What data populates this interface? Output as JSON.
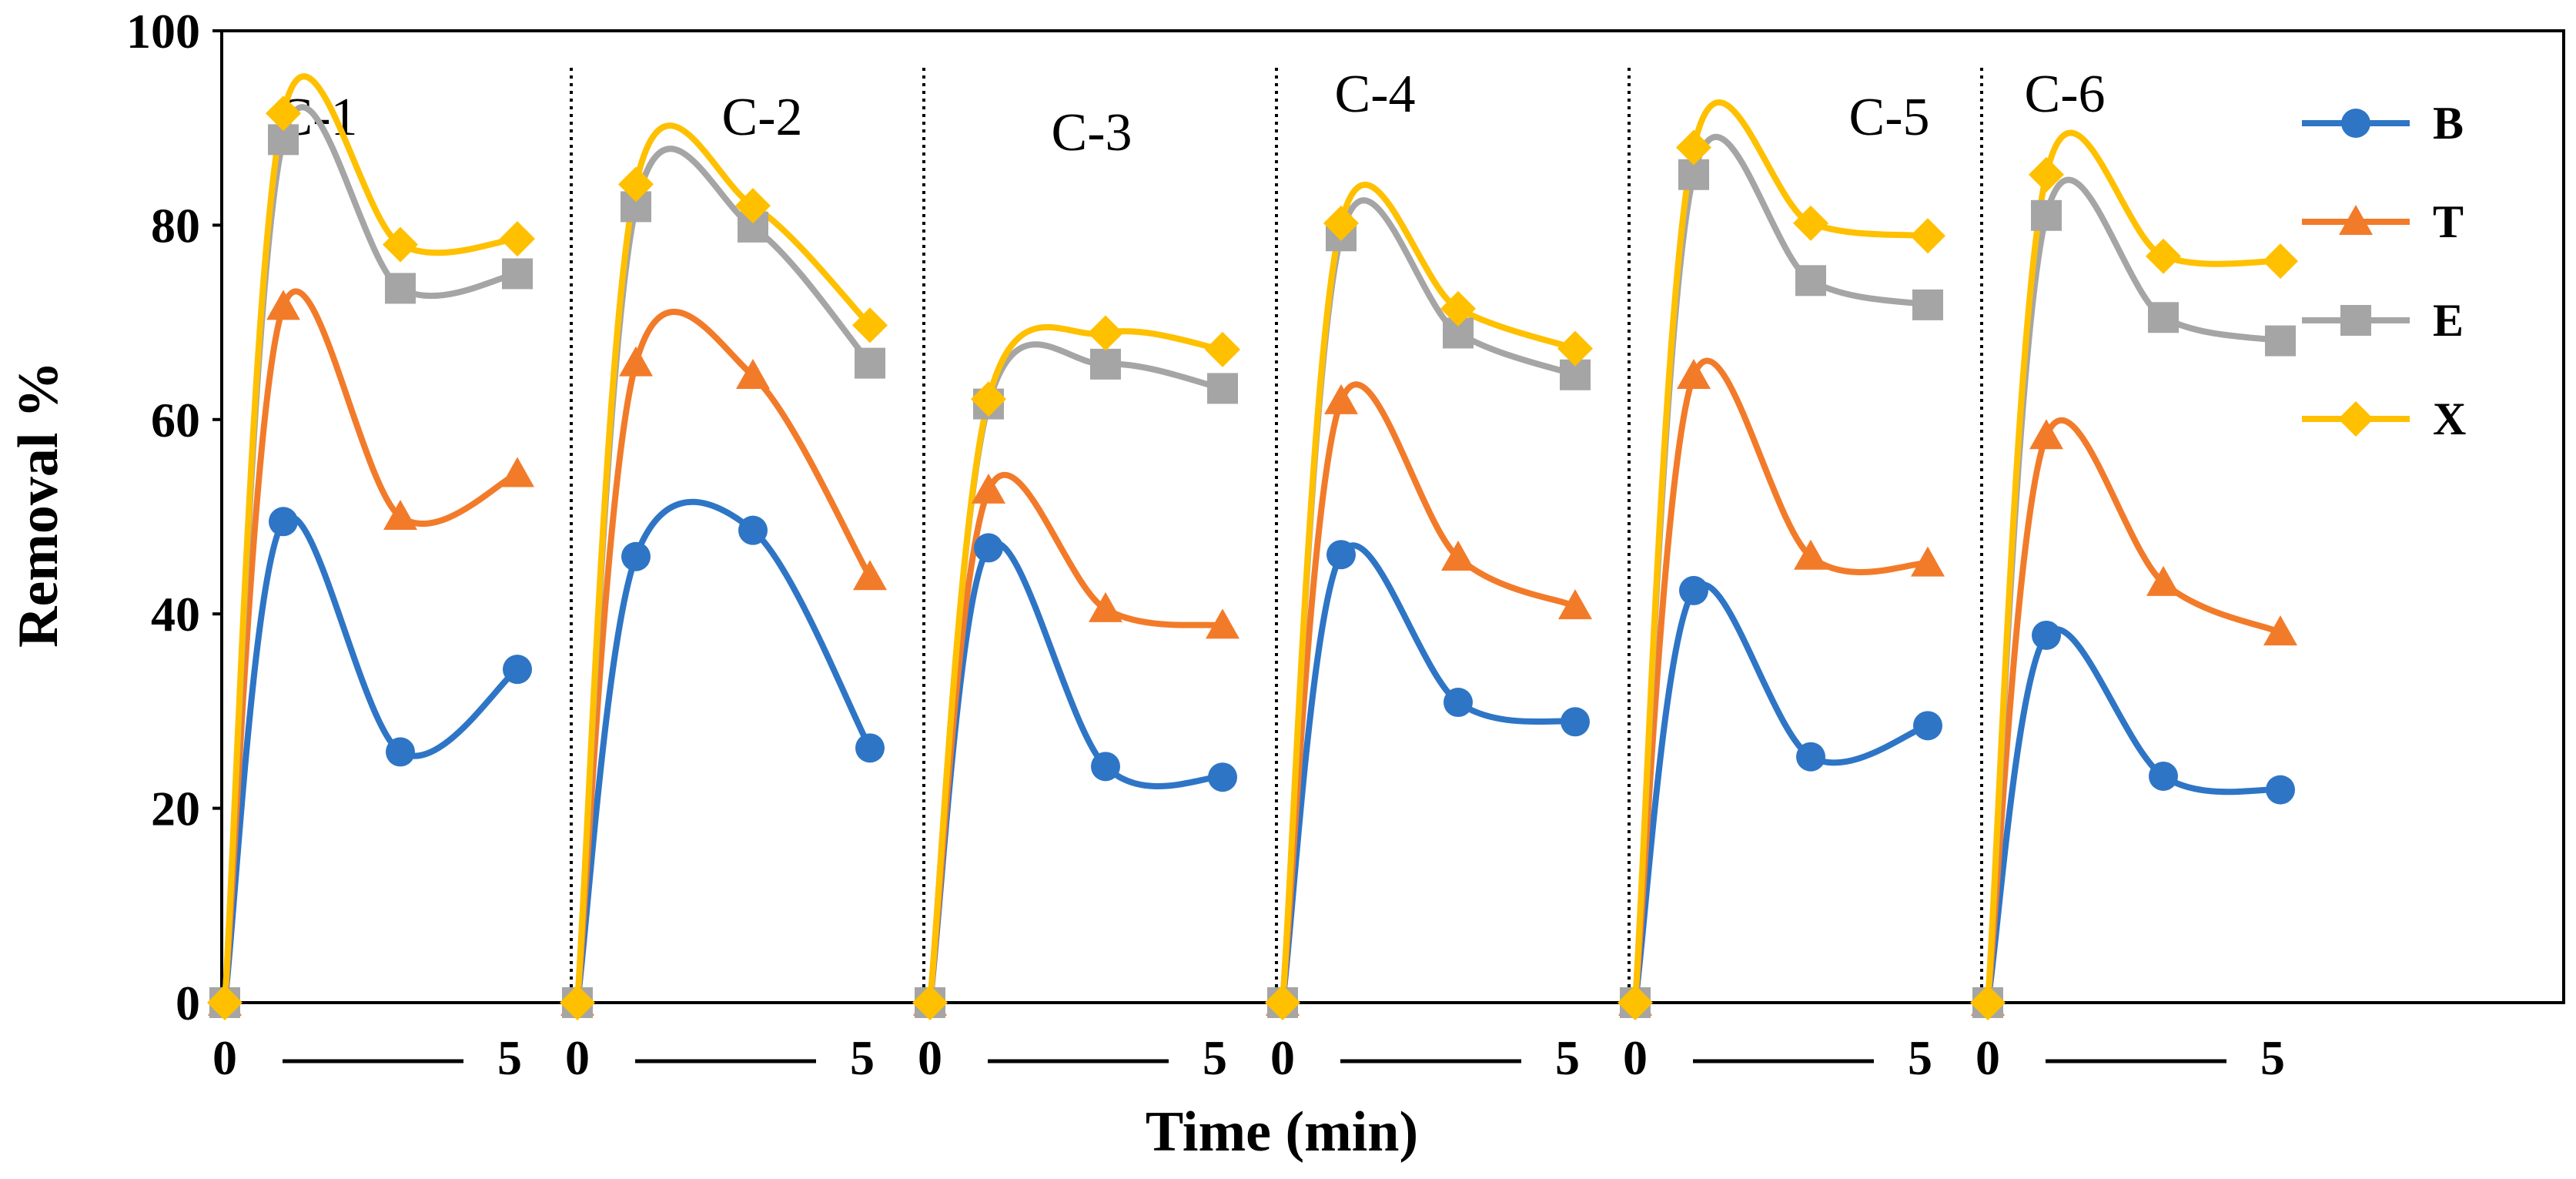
{
  "chart_data": {
    "type": "line",
    "ylabel": "Removal %",
    "xlabel": "Time (min)",
    "ylim": [
      0,
      100
    ],
    "yticks": [
      "0",
      "20",
      "40",
      "60",
      "80",
      "100"
    ],
    "x_tick_start": "0",
    "x_tick_end": "5",
    "grid": false,
    "legend_position": "top-right",
    "series_style": [
      {
        "name": "B",
        "color": "#2E75C6",
        "marker": "circle"
      },
      {
        "name": "T",
        "color": "#F27B2A",
        "marker": "triangle"
      },
      {
        "name": "E",
        "color": "#A5A5A5",
        "marker": "square"
      },
      {
        "name": "X",
        "color": "#FFC000",
        "marker": "diamond"
      }
    ],
    "panels": [
      {
        "label": "C-1",
        "x": [
          0,
          1,
          3,
          5
        ],
        "series": [
          {
            "name": "B",
            "values": [
              0,
              49.5,
              25.8,
              34.3
            ]
          },
          {
            "name": "T",
            "values": [
              0,
              71.6,
              50.0,
              54.4
            ]
          },
          {
            "name": "E",
            "values": [
              0,
              88.8,
              73.5,
              75.0
            ]
          },
          {
            "name": "X",
            "values": [
              0,
              91.5,
              78.0,
              78.6
            ]
          }
        ]
      },
      {
        "label": "C-2",
        "x": [
          0,
          1,
          3,
          5
        ],
        "series": [
          {
            "name": "B",
            "values": [
              0,
              45.9,
              48.6,
              26.2
            ]
          },
          {
            "name": "T",
            "values": [
              0,
              65.8,
              64.5,
              43.8
            ]
          },
          {
            "name": "E",
            "values": [
              0,
              81.9,
              79.8,
              65.8
            ]
          },
          {
            "name": "X",
            "values": [
              0,
              84.2,
              82.0,
              69.7
            ]
          }
        ]
      },
      {
        "label": "C-3",
        "x": [
          0,
          1,
          3,
          5
        ],
        "series": [
          {
            "name": "B",
            "values": [
              0,
              46.8,
              24.3,
              23.2
            ]
          },
          {
            "name": "T",
            "values": [
              0,
              52.7,
              40.5,
              38.8
            ]
          },
          {
            "name": "E",
            "values": [
              0,
              61.6,
              65.7,
              63.2
            ]
          },
          {
            "name": "X",
            "values": [
              0,
              62.1,
              68.9,
              67.2
            ]
          }
        ]
      },
      {
        "label": "C-4",
        "x": [
          0,
          1,
          3,
          5
        ],
        "series": [
          {
            "name": "B",
            "values": [
              0,
              46.1,
              30.9,
              28.9
            ]
          },
          {
            "name": "T",
            "values": [
              0,
              61.9,
              45.8,
              40.8
            ]
          },
          {
            "name": "E",
            "values": [
              0,
              78.9,
              68.9,
              64.6
            ]
          },
          {
            "name": "X",
            "values": [
              0,
              80.2,
              71.4,
              67.3
            ]
          }
        ]
      },
      {
        "label": "C-5",
        "x": [
          0,
          1,
          3,
          5
        ],
        "series": [
          {
            "name": "B",
            "values": [
              0,
              42.4,
              25.3,
              28.5
            ]
          },
          {
            "name": "T",
            "values": [
              0,
              64.5,
              45.9,
              45.2
            ]
          },
          {
            "name": "E",
            "values": [
              0,
              85.2,
              74.3,
              71.8
            ]
          },
          {
            "name": "X",
            "values": [
              0,
              88.0,
              80.2,
              78.9
            ]
          }
        ]
      },
      {
        "label": "C-6",
        "x": [
          0,
          1,
          3,
          5
        ],
        "series": [
          {
            "name": "B",
            "values": [
              0,
              37.8,
              23.3,
              21.9
            ]
          },
          {
            "name": "T",
            "values": [
              0,
              58.3,
              43.2,
              38.1
            ]
          },
          {
            "name": "E",
            "values": [
              0,
              81.0,
              70.5,
              68.1
            ]
          },
          {
            "name": "X",
            "values": [
              0,
              85.2,
              76.8,
              76.3
            ]
          }
        ]
      }
    ]
  }
}
